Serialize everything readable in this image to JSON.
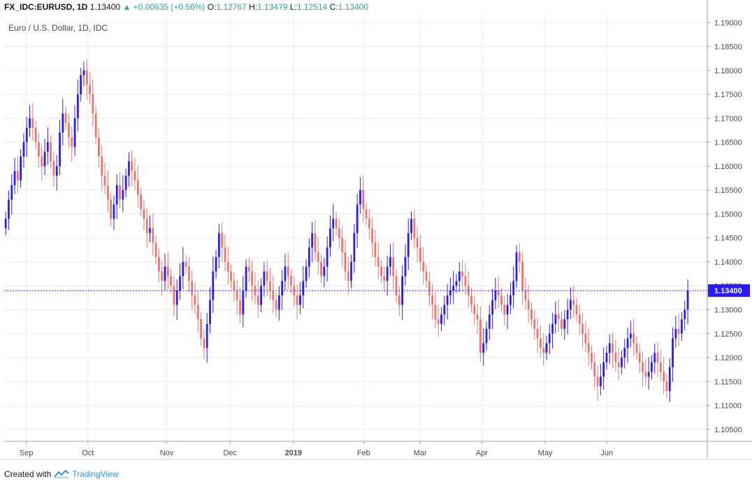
{
  "header": {
    "symbol": "FX_IDC:EURUSD, 1D",
    "last": "1.13400",
    "arrow": "▲",
    "change": "+0.00635 (+0.56%)",
    "o_label": "O:",
    "o_value": "1.12767",
    "h_label": "H:",
    "h_value": "1.13479",
    "l_label": "L:",
    "l_value": "1.12514",
    "c_label": "C:",
    "c_value": "1.13400"
  },
  "subtitle": "Euro / U.S. Dollar, 1D, IDC",
  "footer": {
    "created_with": "Created with",
    "brand": "TradingView"
  },
  "colors": {
    "up": "#2a1bff",
    "down": "#e8766e",
    "grid": "#ebebeb",
    "axis": "#9aa0a6",
    "price_tag": "#2a1bff"
  },
  "chart_data": {
    "type": "candlestick",
    "title": "Euro / U.S. Dollar, 1D, IDC",
    "ylim": [
      1.1025,
      1.1915
    ],
    "y_ticks": [
      "1.10500",
      "1.11000",
      "1.11500",
      "1.12000",
      "1.12500",
      "1.13000",
      "1.13500",
      "1.14000",
      "1.14500",
      "1.15000",
      "1.15500",
      "1.16000",
      "1.16500",
      "1.17000",
      "1.17500",
      "1.18000",
      "1.18500",
      "1.19000"
    ],
    "x_ticks": [
      "Sep",
      "Oct",
      "Nov",
      "Dec",
      "2019",
      "Feb",
      "Mar",
      "Apr",
      "May",
      "Jun"
    ],
    "x_tick_days": [
      12,
      48,
      94,
      131,
      168,
      209,
      242,
      278,
      315,
      351
    ],
    "last_price": "1.13400",
    "grid": true,
    "close": [
      1.149,
      1.153,
      1.156,
      1.159,
      1.157,
      1.162,
      1.165,
      1.168,
      1.17,
      1.168,
      1.165,
      1.162,
      1.16,
      1.163,
      1.165,
      1.161,
      1.158,
      1.16,
      1.167,
      1.171,
      1.169,
      1.166,
      1.164,
      1.17,
      1.175,
      1.179,
      1.18,
      1.177,
      1.175,
      1.171,
      1.166,
      1.162,
      1.158,
      1.156,
      1.153,
      1.149,
      1.152,
      1.156,
      1.153,
      1.155,
      1.158,
      1.161,
      1.159,
      1.157,
      1.154,
      1.151,
      1.149,
      1.146,
      1.147,
      1.144,
      1.141,
      1.138,
      1.136,
      1.139,
      1.137,
      1.135,
      1.131,
      1.134,
      1.137,
      1.14,
      1.139,
      1.136,
      1.133,
      1.131,
      1.128,
      1.124,
      1.122,
      1.127,
      1.132,
      1.138,
      1.141,
      1.146,
      1.143,
      1.14,
      1.138,
      1.136,
      1.134,
      1.132,
      1.129,
      1.134,
      1.139,
      1.138,
      1.135,
      1.133,
      1.131,
      1.135,
      1.138,
      1.136,
      1.134,
      1.132,
      1.13,
      1.133,
      1.136,
      1.139,
      1.137,
      1.135,
      1.133,
      1.131,
      1.133,
      1.136,
      1.139,
      1.143,
      1.146,
      1.142,
      1.14,
      1.137,
      1.139,
      1.143,
      1.147,
      1.149,
      1.147,
      1.145,
      1.142,
      1.138,
      1.136,
      1.14,
      1.146,
      1.152,
      1.155,
      1.151,
      1.149,
      1.147,
      1.144,
      1.141,
      1.139,
      1.137,
      1.136,
      1.139,
      1.141,
      1.137,
      1.133,
      1.131,
      1.137,
      1.141,
      1.146,
      1.149,
      1.145,
      1.143,
      1.14,
      1.138,
      1.136,
      1.133,
      1.131,
      1.128,
      1.127,
      1.129,
      1.131,
      1.133,
      1.134,
      1.135,
      1.136,
      1.138,
      1.137,
      1.135,
      1.133,
      1.131,
      1.129,
      1.128,
      1.121,
      1.123,
      1.126,
      1.129,
      1.132,
      1.134,
      1.133,
      1.131,
      1.129,
      1.131,
      1.133,
      1.136,
      1.142,
      1.14,
      1.134,
      1.132,
      1.13,
      1.128,
      1.126,
      1.124,
      1.122,
      1.121,
      1.123,
      1.125,
      1.127,
      1.129,
      1.128,
      1.126,
      1.128,
      1.13,
      1.132,
      1.131,
      1.129,
      1.127,
      1.125,
      1.123,
      1.121,
      1.119,
      1.116,
      1.114,
      1.116,
      1.119,
      1.121,
      1.123,
      1.121,
      1.119,
      1.118,
      1.12,
      1.122,
      1.124,
      1.125,
      1.123,
      1.121,
      1.119,
      1.117,
      1.116,
      1.117,
      1.119,
      1.121,
      1.119,
      1.117,
      1.115,
      1.113,
      1.118,
      1.124,
      1.126,
      1.125,
      1.128,
      1.13,
      1.134
    ]
  }
}
